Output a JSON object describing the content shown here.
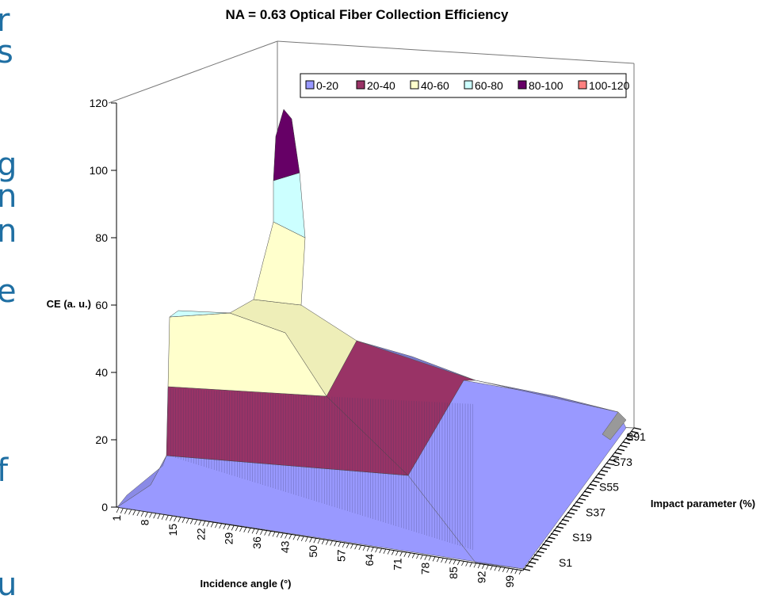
{
  "side_fragments": [
    "r",
    "s",
    "g",
    "n",
    "n",
    "e",
    "f",
    "u"
  ],
  "chart_data": {
    "type": "surface",
    "title": "NA = 0.63 Optical Fiber Collection Efficiency",
    "xlabel": "Incidence angle (°)",
    "ylabel": "Impact parameter (%)",
    "zlabel": "CE (a. u.)",
    "zlim": [
      0,
      120
    ],
    "z_ticks": [
      "0",
      "20",
      "40",
      "60",
      "80",
      "100",
      "120"
    ],
    "x_ticks": [
      "1",
      "8",
      "15",
      "22",
      "29",
      "36",
      "43",
      "50",
      "57",
      "64",
      "71",
      "78",
      "85",
      "92",
      "99"
    ],
    "y_ticks": [
      "S1",
      "S19",
      "S37",
      "S55",
      "S73",
      "S91"
    ],
    "legend": {
      "position": "top-right",
      "entries": [
        {
          "label": "0-20",
          "color": "#9999ff"
        },
        {
          "label": "20-40",
          "color": "#993366"
        },
        {
          "label": "40-60",
          "color": "#ffffcc"
        },
        {
          "label": "60-80",
          "color": "#ccffff"
        },
        {
          "label": "80-100",
          "color": "#660066"
        },
        {
          "label": "100-120",
          "color": "#ff8080"
        }
      ]
    },
    "gridlines": false
  }
}
